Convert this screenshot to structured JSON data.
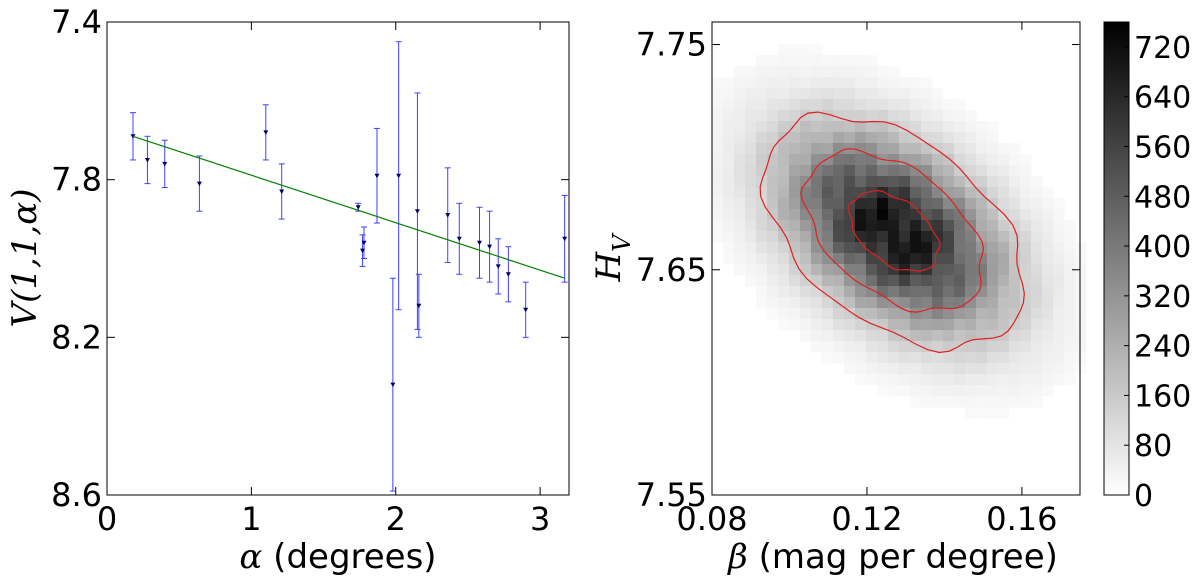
{
  "chart_data": [
    {
      "type": "scatter",
      "panel": "left",
      "xlabel_symbol": "α",
      "xlabel_text": " (degrees)",
      "ylabel": "V(1,1,α)",
      "xlim": [
        0,
        3.2
      ],
      "ylim": [
        8.6,
        7.4
      ],
      "y_inverted": true,
      "x_ticks": [
        0,
        1,
        2,
        3
      ],
      "x_tick_labels": [
        "0",
        "1",
        "2",
        "3"
      ],
      "y_ticks": [
        7.4,
        7.8,
        8.2,
        8.6
      ],
      "y_tick_labels": [
        "7.4",
        "7.8",
        "8.2",
        "8.6"
      ],
      "points": [
        {
          "x": 0.18,
          "y": 7.69,
          "err": 0.06
        },
        {
          "x": 0.28,
          "y": 7.75,
          "err": 0.06
        },
        {
          "x": 0.4,
          "y": 7.76,
          "err": 0.06
        },
        {
          "x": 0.64,
          "y": 7.81,
          "err": 0.07
        },
        {
          "x": 1.1,
          "y": 7.68,
          "err": 0.07
        },
        {
          "x": 1.21,
          "y": 7.83,
          "err": 0.07
        },
        {
          "x": 1.74,
          "y": 7.87,
          "err": 0.01
        },
        {
          "x": 1.77,
          "y": 7.98,
          "err": 0.04
        },
        {
          "x": 1.78,
          "y": 7.96,
          "err": 0.04
        },
        {
          "x": 1.87,
          "y": 7.79,
          "err": 0.12
        },
        {
          "x": 1.98,
          "y": 8.32,
          "err": 0.27
        },
        {
          "x": 2.02,
          "y": 7.79,
          "err": 0.34
        },
        {
          "x": 2.15,
          "y": 7.88,
          "err": 0.3
        },
        {
          "x": 2.16,
          "y": 8.12,
          "err": 0.08
        },
        {
          "x": 2.36,
          "y": 7.89,
          "err": 0.12
        },
        {
          "x": 2.44,
          "y": 7.95,
          "err": 0.09
        },
        {
          "x": 2.58,
          "y": 7.96,
          "err": 0.09
        },
        {
          "x": 2.65,
          "y": 7.97,
          "err": 0.09
        },
        {
          "x": 2.71,
          "y": 8.02,
          "err": 0.07
        },
        {
          "x": 2.78,
          "y": 8.04,
          "err": 0.07
        },
        {
          "x": 2.9,
          "y": 8.13,
          "err": 0.07
        },
        {
          "x": 3.17,
          "y": 7.95,
          "err": 0.11
        }
      ],
      "fit_line": {
        "x": [
          0.18,
          3.17
        ],
        "y": [
          7.69,
          8.05
        ]
      },
      "colors": {
        "errorbar": "#4040ff",
        "point": "#000066",
        "fit": "#008000"
      }
    },
    {
      "type": "heatmap",
      "panel": "right",
      "xlabel_symbol": "β",
      "xlabel_text": " (mag per degree)",
      "ylabel_symbol": "H",
      "ylabel_subscript": "V",
      "xlim": [
        0.08,
        0.175
      ],
      "ylim": [
        7.55,
        7.76
      ],
      "x_ticks": [
        0.08,
        0.12,
        0.16
      ],
      "x_tick_labels": [
        "0.08",
        "0.12",
        "0.16"
      ],
      "y_ticks": [
        7.55,
        7.65,
        7.75
      ],
      "y_tick_labels": [
        "7.55",
        "7.65",
        "7.75"
      ],
      "density_peak": {
        "beta": 0.127,
        "H": 7.667
      },
      "density_max": 760,
      "colorbar_ticks": [
        0,
        80,
        160,
        240,
        320,
        400,
        480,
        560,
        640,
        720
      ],
      "colorbar_range": [
        0,
        760
      ],
      "contour_color": "#e02020"
    }
  ]
}
